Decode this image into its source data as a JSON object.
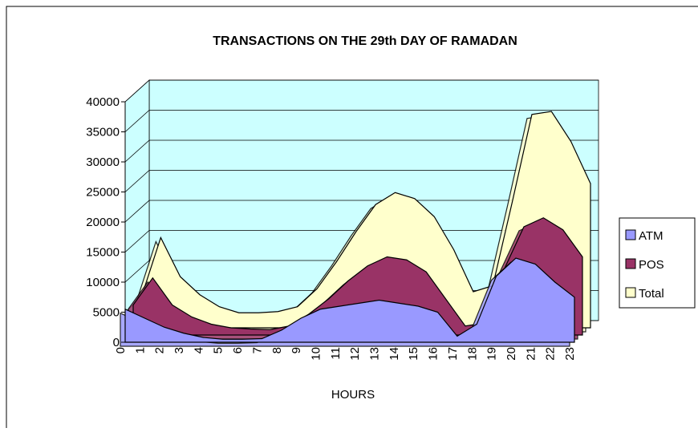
{
  "chart_data": {
    "type": "area",
    "title": "TRANSACTIONS ON THE 29th DAY OF RAMADAN",
    "xlabel": "HOURS",
    "categories": [
      "0",
      "1",
      "2",
      "3",
      "4",
      "5",
      "6",
      "7",
      "8",
      "9",
      "10",
      "11",
      "12",
      "13",
      "14",
      "15",
      "16",
      "17",
      "18",
      "19",
      "20",
      "21",
      "22",
      "23"
    ],
    "series": [
      {
        "name": "ATM",
        "color": "#9999ff",
        "values": [
          5500,
          4000,
          2500,
          1500,
          800,
          500,
          500,
          600,
          2000,
          4000,
          5500,
          6000,
          6500,
          7000,
          6500,
          6000,
          5000,
          1000,
          3000,
          11000,
          14000,
          13000,
          10000,
          7500
        ]
      },
      {
        "name": "POS",
        "color": "#993366",
        "values": [
          5000,
          9500,
          5000,
          3000,
          1800,
          1200,
          1000,
          900,
          1500,
          3500,
          6000,
          9000,
          11500,
          13000,
          12500,
          10500,
          6000,
          1500,
          2000,
          11000,
          18000,
          19500,
          17500,
          13000
        ]
      },
      {
        "name": "Total",
        "color": "#ffffcc",
        "values": [
          5000,
          15000,
          8500,
          5500,
          3500,
          2500,
          2500,
          2700,
          3500,
          6500,
          11000,
          16000,
          20500,
          22500,
          21500,
          18500,
          13000,
          6000,
          7000,
          21000,
          35500,
          36000,
          31000,
          24000
        ]
      }
    ],
    "ylim": [
      0,
      40000
    ],
    "yticks": [
      0,
      5000,
      10000,
      15000,
      20000,
      25000,
      30000,
      35000,
      40000
    ],
    "grid": true,
    "legend": "right",
    "wall_color": "#ccffff"
  }
}
